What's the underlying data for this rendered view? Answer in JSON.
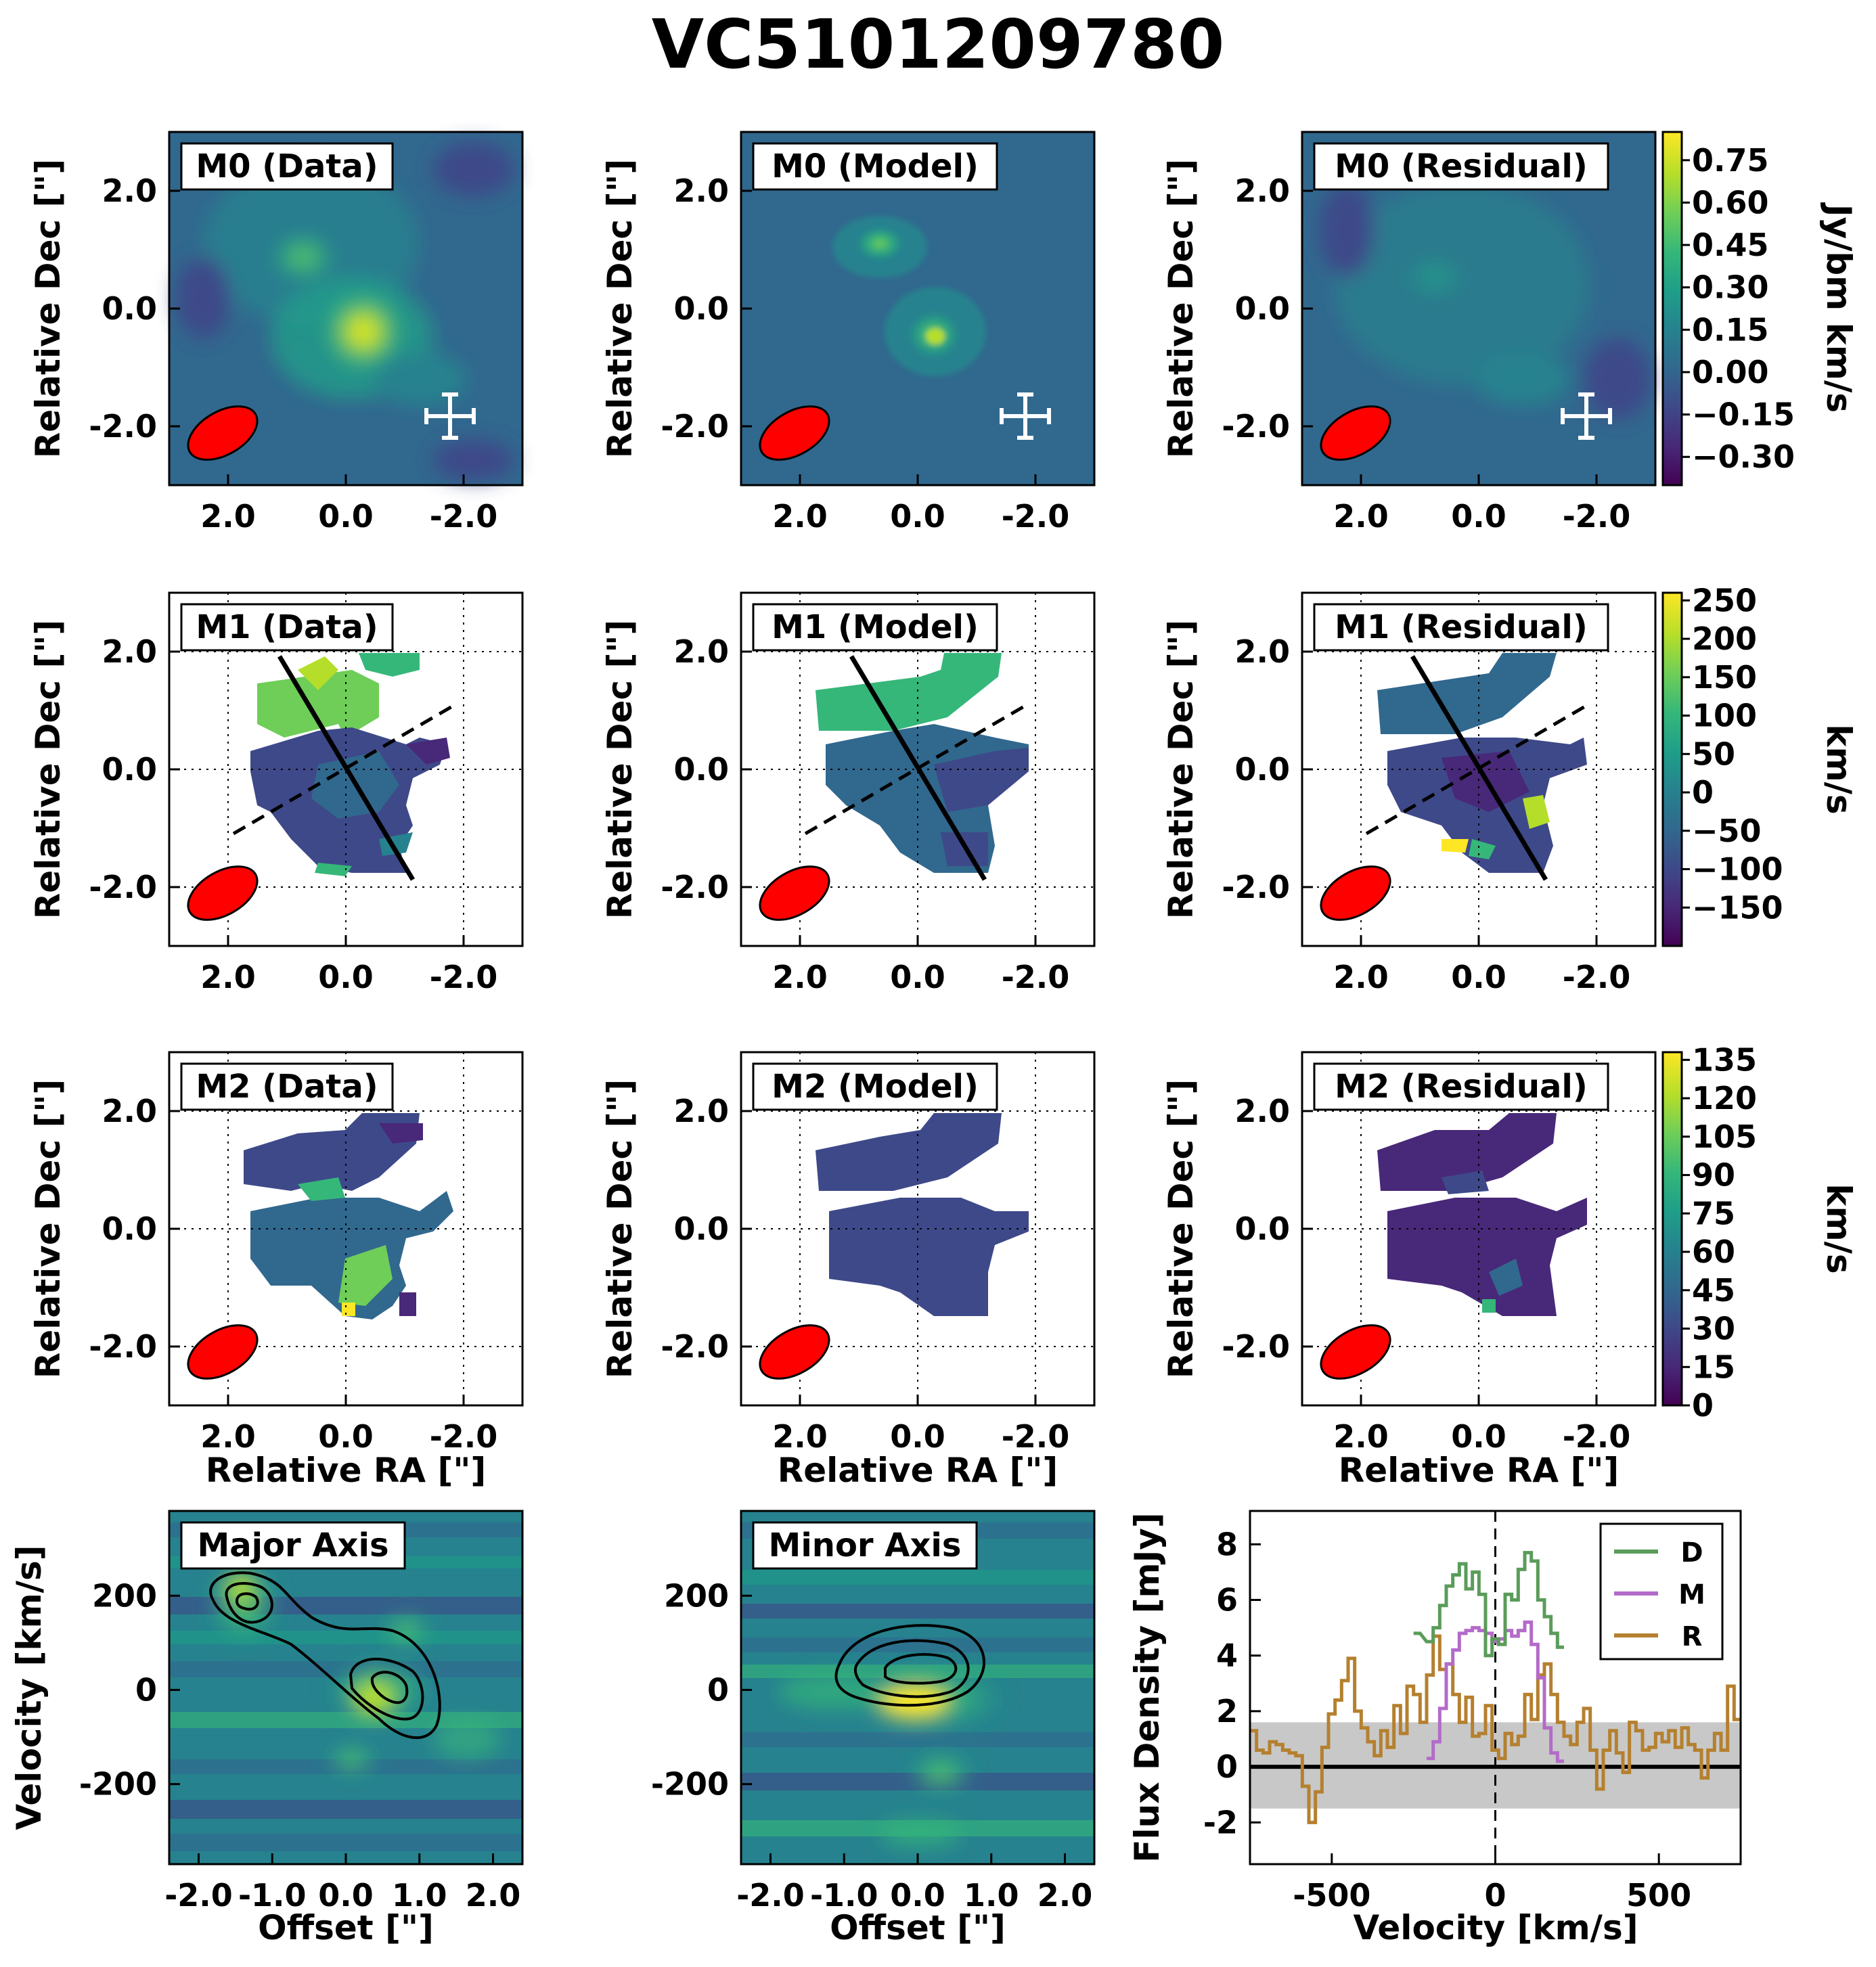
{
  "title": "VC5101209780",
  "colors": {
    "beam": "#ff0000",
    "viridis": [
      "#440154",
      "#482878",
      "#3e4989",
      "#31688e",
      "#26828e",
      "#1f9e89",
      "#35b779",
      "#6ece58",
      "#b5de2b",
      "#fde725"
    ],
    "contour": "#000000",
    "spec_data": "#5a9c5a",
    "spec_model": "#b36bc8",
    "spec_residual": "#b5802f",
    "noise_band": "#c8c8c8"
  },
  "panels": {
    "m0_data": "M0 (Data)",
    "m0_model": "M0 (Model)",
    "m0_resid": "M0 (Residual)",
    "m1_data": "M1 (Data)",
    "m1_model": "M1 (Model)",
    "m1_resid": "M1 (Residual)",
    "m2_data": "M2 (Data)",
    "m2_model": "M2 (Model)",
    "m2_resid": "M2 (Residual)",
    "pv_major": "Major Axis",
    "pv_minor": "Minor Axis"
  },
  "axes": {
    "dec_label": "Relative Dec [\"]",
    "ra_label": "Relative RA [\"]",
    "vel_label": "Velocity [km/s]",
    "offset_label": "Offset [\"]",
    "flux_label": "Flux Density [mJy]",
    "spec_x_label": "Velocity [km/s]",
    "map_ticks": [
      "2.0",
      "0.0",
      "-2.0"
    ],
    "pv_x_ticks": [
      "-2.0",
      "-1.0",
      "0.0",
      "1.0",
      "2.0"
    ],
    "pv_y_ticks": [
      "200",
      "0",
      "-200"
    ],
    "spec_x_ticks": [
      "-500",
      "0",
      "500"
    ],
    "spec_y_ticks": [
      "8",
      "6",
      "4",
      "2",
      "0",
      "-2"
    ]
  },
  "colorbars": {
    "m0": {
      "label": "Jy/bm km/s",
      "ticks": [
        "0.75",
        "0.60",
        "0.45",
        "0.30",
        "0.15",
        "0.00",
        "−0.15",
        "−0.30"
      ],
      "range": [
        -0.4,
        0.85
      ]
    },
    "m1": {
      "label": "km/s",
      "ticks": [
        "250",
        "200",
        "150",
        "100",
        "50",
        "0",
        "−50",
        "−100",
        "−150"
      ],
      "range": [
        -200,
        260
      ]
    },
    "m2": {
      "label": "km/s",
      "ticks": [
        "135",
        "120",
        "105",
        "90",
        "75",
        "60",
        "45",
        "30",
        "15",
        "0"
      ],
      "range": [
        0,
        138
      ]
    }
  },
  "legend": {
    "d": "D",
    "m": "M",
    "r": "R"
  },
  "chart_data": [
    {
      "type": "heatmap",
      "title": "M0 (Data)",
      "xlabel": "",
      "ylabel": "Relative Dec [\"]",
      "xlim": [
        3.0,
        -3.0
      ],
      "ylim": [
        -3.0,
        3.0
      ],
      "units": "Jy/bm km/s",
      "peak": [
        -0.4,
        -0.4
      ]
    },
    {
      "type": "heatmap",
      "title": "M0 (Model)",
      "xlabel": "",
      "ylabel": "Relative Dec [\"]",
      "xlim": [
        3.0,
        -3.0
      ],
      "ylim": [
        -3.0,
        3.0
      ],
      "units": "Jy/bm km/s"
    },
    {
      "type": "heatmap",
      "title": "M0 (Residual)",
      "xlabel": "",
      "ylabel": "Relative Dec [\"]",
      "xlim": [
        3.0,
        -3.0
      ],
      "ylim": [
        -3.0,
        3.0
      ],
      "units": "Jy/bm km/s"
    },
    {
      "type": "heatmap",
      "title": "M1 (Data)",
      "xlabel": "",
      "ylabel": "Relative Dec [\"]",
      "xlim": [
        3.0,
        -3.0
      ],
      "ylim": [
        -3.0,
        3.0
      ],
      "units": "km/s",
      "grid": true
    },
    {
      "type": "heatmap",
      "title": "M1 (Model)",
      "xlabel": "",
      "ylabel": "Relative Dec [\"]",
      "xlim": [
        3.0,
        -3.0
      ],
      "ylim": [
        -3.0,
        3.0
      ],
      "units": "km/s",
      "grid": true
    },
    {
      "type": "heatmap",
      "title": "M1 (Residual)",
      "xlabel": "",
      "ylabel": "Relative Dec [\"]",
      "xlim": [
        3.0,
        -3.0
      ],
      "ylim": [
        -3.0,
        3.0
      ],
      "units": "km/s",
      "grid": true
    },
    {
      "type": "heatmap",
      "title": "M2 (Data)",
      "xlabel": "Relative RA [\"]",
      "ylabel": "Relative Dec [\"]",
      "xlim": [
        3.0,
        -3.0
      ],
      "ylim": [
        -3.0,
        3.0
      ],
      "units": "km/s",
      "grid": true
    },
    {
      "type": "heatmap",
      "title": "M2 (Model)",
      "xlabel": "Relative RA [\"]",
      "ylabel": "Relative Dec [\"]",
      "xlim": [
        3.0,
        -3.0
      ],
      "ylim": [
        -3.0,
        3.0
      ],
      "units": "km/s",
      "grid": true
    },
    {
      "type": "heatmap",
      "title": "M2 (Residual)",
      "xlabel": "Relative RA [\"]",
      "ylabel": "Relative Dec [\"]",
      "xlim": [
        3.0,
        -3.0
      ],
      "ylim": [
        -3.0,
        3.0
      ],
      "units": "km/s",
      "grid": true
    },
    {
      "type": "heatmap",
      "title": "Major Axis",
      "xlabel": "Offset [\"]",
      "ylabel": "Velocity [km/s]",
      "xlim": [
        -2.4,
        2.4
      ],
      "ylim": [
        -370,
        380
      ]
    },
    {
      "type": "heatmap",
      "title": "Minor Axis",
      "xlabel": "Offset [\"]",
      "ylabel": "Velocity [km/s]",
      "xlim": [
        -2.4,
        2.4
      ],
      "ylim": [
        -370,
        380
      ]
    },
    {
      "type": "line",
      "xlabel": "Velocity [km/s]",
      "ylabel": "Flux Density [mJy]",
      "xlim": [
        -750,
        750
      ],
      "ylim": [
        -3.5,
        9.2
      ],
      "noise_band": [
        -1.5,
        1.6
      ],
      "legend_position": "top-right",
      "series": [
        {
          "name": "D",
          "x": [
            -240,
            -200,
            -180,
            -160,
            -140,
            -120,
            -100,
            -80,
            -60,
            -40,
            -20,
            0,
            20,
            40,
            60,
            80,
            100,
            120,
            140,
            160,
            180,
            200
          ],
          "y": [
            4.8,
            4.5,
            5.0,
            5.8,
            6.5,
            6.9,
            7.3,
            6.4,
            7.0,
            6.2,
            4.0,
            4.6,
            4.4,
            6.2,
            6.0,
            7.1,
            7.7,
            7.4,
            6.0,
            5.4,
            4.8,
            4.3
          ]
        },
        {
          "name": "M",
          "x": [
            -200,
            -180,
            -160,
            -140,
            -120,
            -100,
            -80,
            -60,
            -40,
            -20,
            0,
            20,
            40,
            60,
            80,
            100,
            120,
            140,
            160,
            180,
            200
          ],
          "y": [
            0.3,
            0.9,
            2.1,
            3.7,
            4.2,
            4.8,
            4.9,
            5.0,
            4.9,
            4.8,
            4.5,
            4.6,
            4.9,
            4.7,
            4.9,
            5.2,
            4.4,
            3.2,
            1.4,
            0.5,
            0.2
          ]
        },
        {
          "name": "R",
          "x": [
            -740,
            -720,
            -700,
            -680,
            -660,
            -640,
            -620,
            -600,
            -580,
            -560,
            -540,
            -520,
            -500,
            -480,
            -460,
            -440,
            -420,
            -400,
            -380,
            -360,
            -340,
            -320,
            -300,
            -280,
            -260,
            -240,
            -220,
            -200,
            -180,
            -160,
            -140,
            -120,
            -100,
            -80,
            -60,
            -40,
            -20,
            0,
            20,
            40,
            60,
            80,
            100,
            120,
            140,
            160,
            180,
            200,
            220,
            240,
            260,
            280,
            300,
            320,
            340,
            360,
            380,
            400,
            420,
            440,
            460,
            480,
            500,
            520,
            540,
            560,
            580,
            600,
            620,
            640,
            660,
            680,
            700,
            720,
            740
          ],
          "y": [
            1.3,
            0.6,
            0.5,
            0.9,
            0.8,
            0.6,
            0.5,
            0.4,
            -0.7,
            -2.0,
            -0.9,
            0.7,
            1.9,
            2.4,
            3.1,
            3.9,
            2.0,
            1.4,
            0.9,
            0.4,
            1.3,
            0.7,
            2.2,
            1.2,
            2.9,
            2.6,
            1.6,
            3.3,
            4.7,
            3.5,
            3.7,
            2.6,
            1.6,
            2.5,
            1.1,
            1.2,
            2.2,
            0.6,
            0.3,
            1.2,
            0.8,
            1.1,
            2.6,
            1.7,
            3.3,
            3.7,
            2.6,
            1.6,
            1.1,
            0.8,
            1.6,
            2.1,
            0.6,
            -0.8,
            0.6,
            1.3,
            0.5,
            -0.2,
            1.6,
            1.3,
            0.6,
            0.7,
            1.2,
            0.9,
            1.3,
            0.7,
            1.4,
            0.8,
            0.6,
            -0.4,
            0.6,
            1.2,
            0.6,
            2.9,
            1.7
          ]
        }
      ]
    }
  ]
}
